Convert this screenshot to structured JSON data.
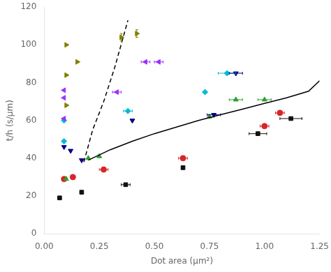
{
  "chart_data": {
    "type": "scatter",
    "xlabel": "Dot area (μm²)",
    "ylabel": "t/h (s/μm)",
    "xlim": [
      0.0,
      1.25
    ],
    "ylim": [
      0,
      120
    ],
    "xticks": [
      {
        "value": 0.0,
        "label": "0.00"
      },
      {
        "value": 0.25,
        "label": "0.25"
      },
      {
        "value": 0.5,
        "label": "0.50"
      },
      {
        "value": 0.75,
        "label": "0.75"
      },
      {
        "value": 1.0,
        "label": "1.00"
      },
      {
        "value": 1.25,
        "label": "1.25"
      }
    ],
    "yticks": [
      0,
      20,
      40,
      60,
      80,
      100,
      120
    ],
    "grid": false,
    "series": [
      {
        "type": "scatter",
        "color": "#808000",
        "marker": "triangle_right",
        "x": [
          0.1,
          0.15,
          0.1,
          0.1,
          0.35,
          0.42
        ],
        "values": [
          100,
          91,
          84,
          68,
          104,
          106
        ],
        "xerr": [
          0,
          0,
          0,
          0,
          0,
          0
        ],
        "yerr": [
          0,
          0,
          0,
          0,
          2,
          2
        ]
      },
      {
        "type": "scatter",
        "color": "#9b30ff",
        "marker": "triangle_left",
        "x": [
          0.09,
          0.09,
          0.09,
          0.33,
          0.46,
          0.52
        ],
        "values": [
          76,
          72,
          61,
          75,
          91,
          91
        ],
        "xerr": [
          0,
          0,
          0,
          0.02,
          0.02,
          0.02
        ],
        "yerr": [
          0,
          0,
          0,
          0,
          0,
          0
        ]
      },
      {
        "type": "scatter",
        "color": "#00bcd4",
        "marker": "diamond",
        "x": [
          0.09,
          0.09,
          0.38,
          0.73,
          0.83
        ],
        "values": [
          60,
          49,
          65,
          75,
          85
        ],
        "xerr": [
          0,
          0,
          0.02,
          0,
          0.04
        ],
        "yerr": [
          0,
          0,
          0,
          0,
          0
        ]
      },
      {
        "type": "scatter",
        "color": "#000080",
        "marker": "triangle_down",
        "x": [
          0.09,
          0.12,
          0.17,
          0.4,
          0.77,
          0.87
        ],
        "values": [
          46,
          44,
          39,
          60,
          63,
          85
        ],
        "xerr": [
          0,
          0,
          0,
          0,
          0.03,
          0.03
        ],
        "yerr": [
          0,
          0,
          0,
          0,
          0,
          0
        ]
      },
      {
        "type": "scatter",
        "color": "#2ca02c",
        "marker": "triangle_up",
        "x": [
          0.1,
          0.2,
          0.25,
          0.75,
          0.87,
          1.0
        ],
        "values": [
          29,
          40,
          41,
          62,
          71,
          71
        ],
        "xerr": [
          0,
          0,
          0,
          0,
          0.03,
          0.03
        ],
        "yerr": [
          0,
          0,
          0,
          0,
          0,
          0
        ]
      },
      {
        "type": "scatter",
        "color": "#d62728",
        "marker": "circle",
        "x": [
          0.09,
          0.13,
          0.27,
          0.63,
          1.0,
          1.07
        ],
        "values": [
          29,
          30,
          34,
          40,
          57,
          64
        ],
        "xerr": [
          0,
          0,
          0.02,
          0.02,
          0.02,
          0.02
        ],
        "yerr": [
          0,
          0,
          0,
          0,
          0,
          0
        ]
      },
      {
        "type": "scatter",
        "color": "#111111",
        "marker": "square",
        "x": [
          0.07,
          0.17,
          0.37,
          0.63,
          0.97,
          1.12
        ],
        "values": [
          19,
          22,
          26,
          35,
          53,
          61
        ],
        "xerr": [
          0,
          0,
          0.02,
          0,
          0.04,
          0.05
        ],
        "yerr": [
          0,
          0,
          0,
          0,
          0,
          0
        ]
      },
      {
        "type": "line",
        "color": "#000000",
        "line_style": "solid",
        "x": [
          0.2,
          0.3,
          0.4,
          0.5,
          0.6,
          0.7,
          0.8,
          0.9,
          1.0,
          1.1,
          1.2,
          1.25
        ],
        "values": [
          39.0,
          44.5,
          49.0,
          53.0,
          56.5,
          60.0,
          63.0,
          66.0,
          69.0,
          72.0,
          75.5,
          81.0
        ]
      },
      {
        "type": "line",
        "color": "#000000",
        "line_style": "dashed",
        "x": [
          0.18,
          0.22,
          0.27,
          0.32,
          0.38
        ],
        "values": [
          38.0,
          55.0,
          70.0,
          88.0,
          113.0
        ]
      }
    ]
  }
}
